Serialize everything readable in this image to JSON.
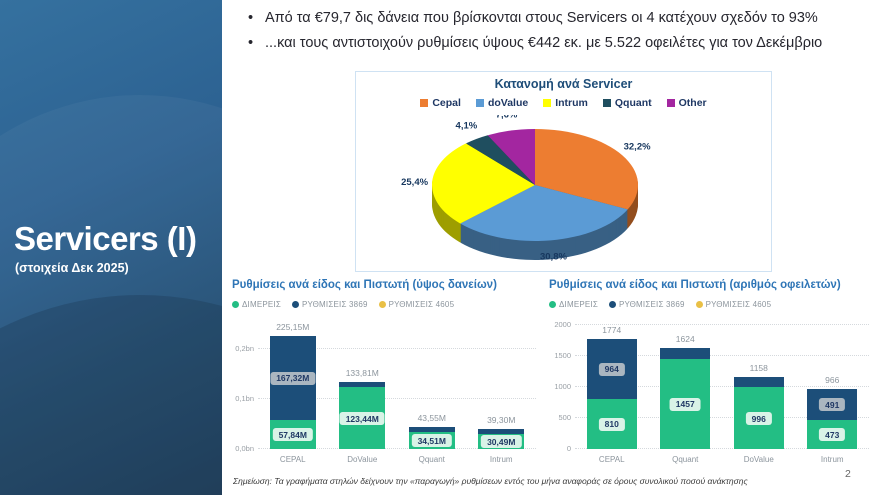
{
  "slide": {
    "sidebar": {
      "title": "Servicers (I)",
      "subtitle": "(στοιχεία Δεκ 2025)"
    },
    "bullets": [
      "Από τα €79,7 δις δάνεια που βρίσκονται στους Servicers οι 4 κατέχουν σχεδόν το 93%",
      "...και τους αντιστοιχούν ρυθμίσεις ύψους €442 εκ. με 5.522 οφειλέτες για τον Δεκέμβριο"
    ],
    "footnote": "Σημείωση: Τα γραφήματα στηλών δείχνουν την «παραγωγή» ρυθμίσεων εντός του μήνα αναφοράς σε όρους συνολικού ποσού ανάκτησης",
    "page_number": "2"
  },
  "colors": {
    "sidebar_top": "#35719f",
    "sidebar_bottom": "#1b3e5d",
    "bar_title_blue": "#2e75b6",
    "pie_title_navy": "#1f4e79",
    "green": "#23be84",
    "navy": "#1c4e79",
    "gold": "#e9c046",
    "label_green_bg": "#d9f3e7",
    "label_gray_bg": "#aab6c0",
    "box_border": "#cfe2f3"
  },
  "chart_data": [
    {
      "type": "pie",
      "title": "Κατανομή ανά Servicer",
      "style": "3d-pie, starts at 12 o'clock clockwise",
      "legend_position": "top",
      "slices": [
        {
          "name": "Cepal",
          "value": 32.2,
          "label": "32,2%",
          "color": "#ED7D31"
        },
        {
          "name": "doValue",
          "value": 30.8,
          "label": "30,8%",
          "color": "#5B9BD5"
        },
        {
          "name": "Intrum",
          "value": 25.4,
          "label": "25,4%",
          "color": "#FFFF00"
        },
        {
          "name": "Qquant",
          "value": 4.1,
          "label": "4,1%",
          "color": "#1F4E5F"
        },
        {
          "name": "Other",
          "value": 7.6,
          "label": "7,6%",
          "color": "#A326A0"
        }
      ]
    },
    {
      "type": "bar",
      "subtype": "stacked",
      "title": "Ρυθμίσεις ανά είδος και Πιστωτή (ύψος δανείων)",
      "legend": [
        {
          "label": "ΔΙΜΕΡΕΙΣ",
          "color": "#23be84"
        },
        {
          "label": "ΡΥΘΜΙΣΕΙΣ 3869",
          "color": "#1c4e79"
        },
        {
          "label": "ΡΥΘΜΙΣΕΙΣ 4605",
          "color": "#e9c046"
        }
      ],
      "y_axis": {
        "unit": "M",
        "ylim": [
          0,
          255
        ],
        "grid": "dotted",
        "ticks": [
          {
            "value": 0,
            "label": "0,0bn"
          },
          {
            "value": 100,
            "label": "0,1bn"
          },
          {
            "value": 200,
            "label": "0,2bn"
          }
        ]
      },
      "bars": [
        {
          "category": "CEPAL",
          "total_label": "225,15M",
          "segments": [
            {
              "series": "ΔΙΜΕΡΕΙΣ",
              "value": 57.84,
              "label": "57,84M"
            },
            {
              "series": "ΡΥΘΜΙΣΕΙΣ 3869",
              "value": 167.32,
              "label": "167,32M"
            }
          ]
        },
        {
          "category": "DoValue",
          "total_label": "133,81M",
          "segments": [
            {
              "series": "ΔΙΜΕΡΕΙΣ",
              "value": 123.44,
              "label": "123,44M"
            },
            {
              "series": "ΡΥΘΜΙΣΕΙΣ 3869",
              "value": 10.37
            }
          ]
        },
        {
          "category": "Qquant",
          "total_label": "43,55M",
          "segments": [
            {
              "series": "ΔΙΜΕΡΕΙΣ",
              "value": 34.51,
              "label": "34,51M"
            },
            {
              "series": "ΡΥΘΜΙΣΕΙΣ 3869",
              "value": 9.04
            }
          ]
        },
        {
          "category": "Intrum",
          "total_label": "39,30M",
          "segments": [
            {
              "series": "ΔΙΜΕΡΕΙΣ",
              "value": 30.49,
              "label": "30,49M"
            },
            {
              "series": "ΡΥΘΜΙΣΕΙΣ 3869",
              "value": 8.81
            }
          ]
        }
      ]
    },
    {
      "type": "bar",
      "subtype": "stacked",
      "title": "Ρυθμίσεις ανά είδος και Πιστωτή (αριθμός οφειλετών)",
      "legend": [
        {
          "label": "ΔΙΜΕΡΕΙΣ",
          "color": "#23be84"
        },
        {
          "label": "ΡΥΘΜΙΣΕΙΣ 3869",
          "color": "#1c4e79"
        },
        {
          "label": "ΡΥΘΜΙΣΕΙΣ 4605",
          "color": "#e9c046"
        }
      ],
      "y_axis": {
        "unit": "debtors",
        "ylim": [
          0,
          2065
        ],
        "grid": "dotted",
        "ticks": [
          {
            "value": 0,
            "label": "0"
          },
          {
            "value": 500,
            "label": "500"
          },
          {
            "value": 1000,
            "label": "1000"
          },
          {
            "value": 1500,
            "label": "1500"
          },
          {
            "value": 2000,
            "label": "2000"
          }
        ]
      },
      "bars": [
        {
          "category": "CEPAL",
          "total_label": "1774",
          "segments": [
            {
              "series": "ΔΙΜΕΡΕΙΣ",
              "value": 810,
              "label": "810"
            },
            {
              "series": "ΡΥΘΜΙΣΕΙΣ 3869",
              "value": 964,
              "label": "964"
            }
          ]
        },
        {
          "category": "Qquant",
          "total_label": "1624",
          "segments": [
            {
              "series": "ΔΙΜΕΡΕΙΣ",
              "value": 1457,
              "label": "1457"
            },
            {
              "series": "ΡΥΘΜΙΣΕΙΣ 3869",
              "value": 167
            }
          ]
        },
        {
          "category": "DoValue",
          "total_label": "1158",
          "segments": [
            {
              "series": "ΔΙΜΕΡΕΙΣ",
              "value": 996,
              "label": "996"
            },
            {
              "series": "ΡΥΘΜΙΣΕΙΣ 3869",
              "value": 162
            }
          ]
        },
        {
          "category": "Intrum",
          "total_label": "966",
          "segments": [
            {
              "series": "ΔΙΜΕΡΕΙΣ",
              "value": 473,
              "label": "473"
            },
            {
              "series": "ΡΥΘΜΙΣΕΙΣ 3869",
              "value": 491,
              "label": "491"
            }
          ]
        }
      ]
    }
  ]
}
